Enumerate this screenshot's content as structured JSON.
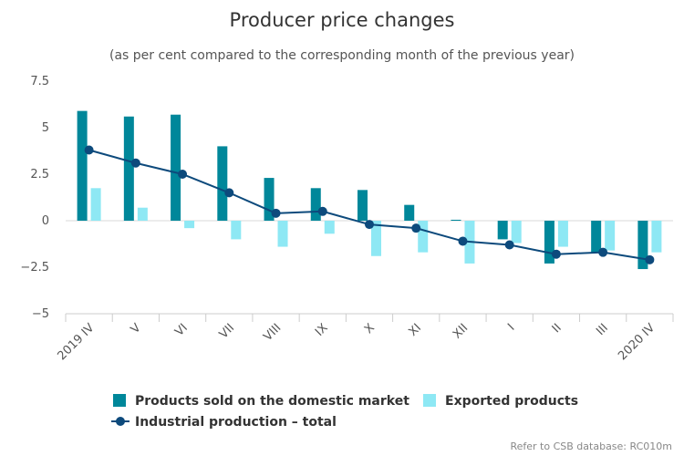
{
  "chart_data": {
    "type": "bar",
    "title": "Producer price changes",
    "subtitle": "(as per cent compared to the corresponding month of the previous year)",
    "categories": [
      "2019 IV",
      "V",
      "VI",
      "VII",
      "VIII",
      "IX",
      "X",
      "XI",
      "XII",
      "I",
      "II",
      "III",
      "2020 IV"
    ],
    "yticks": [
      "7.5",
      "5",
      "2.5",
      "0",
      "−2.5",
      "−5"
    ],
    "ylim": [
      -5,
      7.5
    ],
    "grid": false,
    "legend_position": "bottom-center",
    "series": [
      {
        "name": "Products sold on the domestic market",
        "type": "bar",
        "color": "#00879a",
        "values": [
          5.9,
          5.6,
          5.7,
          4.0,
          2.3,
          1.75,
          1.65,
          0.85,
          0.05,
          -1.0,
          -2.3,
          -1.7,
          -2.6
        ]
      },
      {
        "name": "Exported products",
        "type": "bar",
        "color": "#8ee8f4",
        "values": [
          1.75,
          0.7,
          -0.4,
          -1.0,
          -1.4,
          -0.7,
          -1.9,
          -1.7,
          -2.3,
          -1.2,
          -1.4,
          -1.6,
          -1.7
        ]
      },
      {
        "name": "Industrial production – total",
        "type": "line",
        "color": "#0d4a7c",
        "values": [
          3.8,
          3.1,
          2.5,
          1.5,
          0.4,
          0.5,
          -0.2,
          -0.4,
          -1.1,
          -1.3,
          -1.8,
          -1.7,
          -2.1
        ]
      }
    ],
    "credit": "Refer to CSB database: RC010m"
  }
}
